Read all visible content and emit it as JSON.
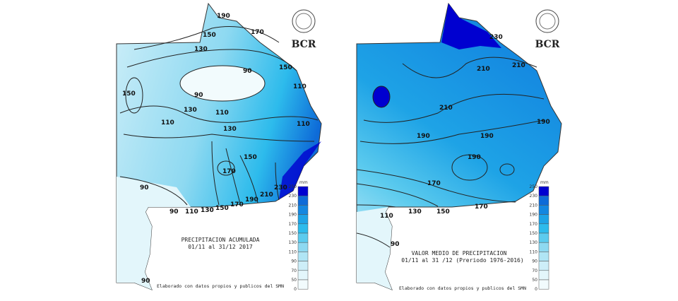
{
  "maps": [
    {
      "title_line1": "PRECIPITACION ACUMULADA",
      "title_line2": "01/11 al 31/12 2017",
      "footer": "Elaborado con datos propios y publicos del SMN",
      "logo_text": "BCR",
      "contour_labels": [
        "190",
        "170",
        "150",
        "130",
        "90",
        "150",
        "110",
        "90",
        "150",
        "110",
        "130",
        "110",
        "110",
        "130",
        "150",
        "170",
        "90",
        "90",
        "110",
        "130",
        "150",
        "170",
        "190",
        "210",
        "230",
        "90"
      ],
      "palette": [
        "#f2fbfd",
        "#e3f6fb",
        "#cdeef8",
        "#b0e5f5",
        "#8ed9f1",
        "#5ccbee",
        "#2dbbec",
        "#1ea3e6",
        "#1487e0",
        "#0e6bd8",
        "#0000d0"
      ]
    },
    {
      "title_line1": "VALOR MEDIO DE PRECIPITACION",
      "title_line2": "01/11 al 31 /12  (Preriodo 1976-2016)",
      "footer": "Elaborado con datos propios y publicos del SMN",
      "logo_text": "BCR",
      "contour_labels": [
        "230",
        "210",
        "210",
        "210",
        "190",
        "190",
        "190",
        "190",
        "170",
        "170",
        "150",
        "130",
        "110",
        "90"
      ],
      "palette": [
        "#f2fbfd",
        "#e3f6fb",
        "#cdeef8",
        "#b0e5f5",
        "#8ed9f1",
        "#5ccbee",
        "#2dbbec",
        "#1ea3e6",
        "#1487e0",
        "#0e6bd8",
        "#0000d0"
      ]
    }
  ],
  "legend": {
    "unit": "mm",
    "ticks": [
      "250",
      "230",
      "210",
      "190",
      "170",
      "150",
      "130",
      "110",
      "90",
      "70",
      "50",
      "0"
    ]
  }
}
